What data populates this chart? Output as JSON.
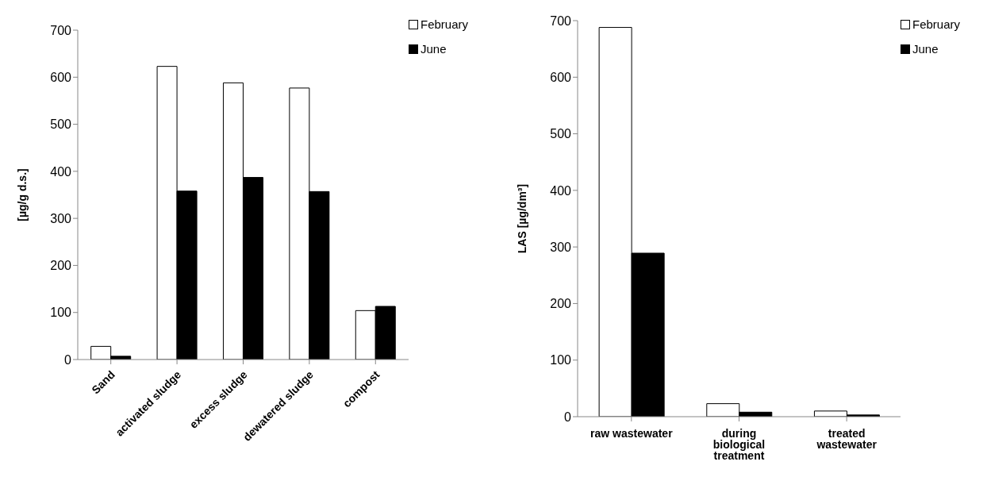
{
  "chart_data": [
    {
      "type": "bar",
      "ylabel": "[µg/g d.s.]",
      "categories": [
        "Sand",
        "activated sludge",
        "excess sludge",
        "dewatered sludge",
        "compost"
      ],
      "series": [
        {
          "name": "February",
          "color": "#ffffff",
          "values": [
            28,
            623,
            588,
            577,
            104
          ]
        },
        {
          "name": "June",
          "color": "#000000",
          "values": [
            7,
            358,
            387,
            357,
            113
          ]
        }
      ],
      "ylim": [
        0,
        700
      ],
      "yticks": [
        0,
        100,
        200,
        300,
        400,
        500,
        600,
        700
      ],
      "legend": "top right"
    },
    {
      "type": "bar",
      "ylabel": "LAS [µg/dm³]",
      "categories": [
        "raw wastewater",
        "during biological treatment",
        "treated wastewater"
      ],
      "series": [
        {
          "name": "February",
          "color": "#ffffff",
          "values": [
            688,
            23,
            10
          ]
        },
        {
          "name": "June",
          "color": "#000000",
          "values": [
            289,
            8,
            3
          ]
        }
      ],
      "ylim": [
        0,
        700
      ],
      "yticks": [
        0,
        100,
        200,
        300,
        400,
        500,
        600,
        700
      ],
      "legend": "top right"
    }
  ]
}
